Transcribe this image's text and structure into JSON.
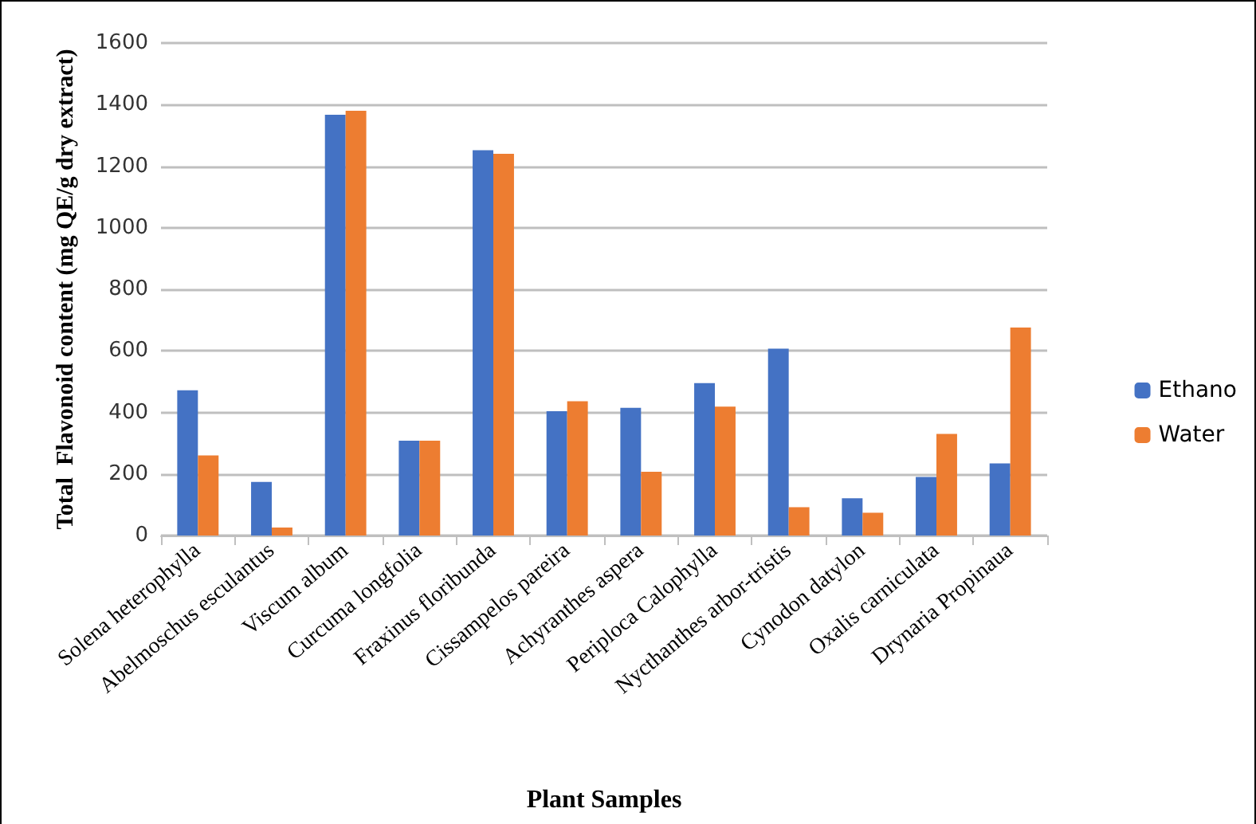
{
  "chart_data": {
    "type": "bar",
    "xlabel": "Plant Samples",
    "ylabel": "Total  Flavonoid content (mg QE/g dry extract)",
    "categories": [
      "Solena heterophylla",
      "Abelmoschus esculantus",
      "Viscum album",
      "Curcuma longfolia",
      "Fraxinus floribunda",
      "Cissampelos pareira",
      "Achyranthes aspera",
      "Periploca Calophylla",
      "Nycthanthes arbor-tristis",
      "Cynodon datylon",
      "Oxalis carniculata",
      "Drynaria Propinaua"
    ],
    "series": [
      {
        "name": "Ethano",
        "color": "#4472c4",
        "values": [
          472,
          174,
          1367,
          308,
          1252,
          404,
          415,
          495,
          607,
          121,
          190,
          234
        ]
      },
      {
        "name": "Water",
        "color": "#ed7d31",
        "values": [
          260,
          26,
          1380,
          308,
          1240,
          436,
          207,
          419,
          92,
          74,
          330,
          676
        ]
      }
    ],
    "ylim": [
      0,
      1600
    ],
    "yticks": [
      0,
      200,
      400,
      600,
      800,
      1000,
      1200,
      1400,
      1600
    ],
    "grid": "y",
    "legend": "right"
  }
}
